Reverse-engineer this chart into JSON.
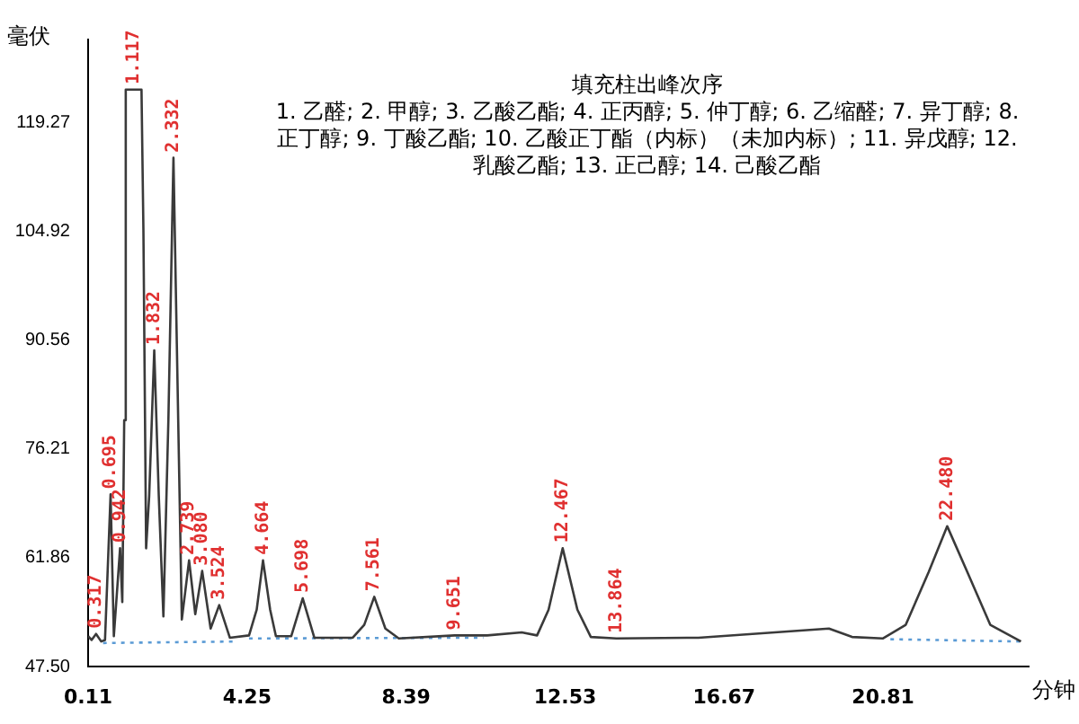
{
  "chart_data": {
    "type": "line",
    "title": "填充柱出峰次序",
    "xlabel": "分钟",
    "ylabel": "毫伏",
    "xlim": [
      0.11,
      24.6
    ],
    "xticks": [
      0.11,
      4.25,
      8.39,
      12.53,
      16.67,
      20.81
    ],
    "ylim": [
      47.5,
      130.2
    ],
    "yticks": [
      {
        "value": 47.5,
        "label": "47.50"
      },
      61.86,
      76.21,
      90.56,
      104.92,
      119.27
    ],
    "grid": false,
    "legend": false,
    "marker": "none",
    "series": [
      {
        "color": "#3a3a3a",
        "line_style": "solid",
        "x": [
          0.11,
          0.2,
          0.317,
          0.45,
          0.55,
          0.695,
          0.78,
          0.942,
          1.0,
          1.05,
          1.09,
          1.5,
          1.55,
          1.62,
          1.7,
          1.832,
          1.95,
          2.07,
          2.2,
          2.332,
          2.42,
          2.55,
          2.739,
          2.9,
          3.08,
          3.3,
          3.524,
          3.8,
          4.3,
          4.5,
          4.664,
          4.85,
          5.0,
          5.4,
          5.698,
          6.0,
          7.0,
          7.3,
          7.561,
          7.85,
          8.2,
          9.651,
          10.5,
          11.4,
          11.8,
          12.1,
          12.467,
          12.85,
          13.2,
          13.864,
          16.0,
          19.4,
          20.0,
          20.8,
          21.4,
          22.0,
          22.48,
          23.0,
          23.6,
          24.4
        ],
        "values": [
          51.5,
          51.0,
          51.8,
          50.8,
          51.0,
          70.2,
          51.5,
          63.1,
          56.0,
          80.0,
          123.6,
          123.6,
          105.0,
          63.1,
          70.0,
          89.2,
          70.0,
          54.1,
          80.0,
          114.6,
          90.0,
          53.7,
          61.5,
          54.4,
          60.1,
          52.5,
          55.6,
          51.3,
          51.6,
          55.0,
          61.5,
          55.0,
          51.5,
          51.5,
          56.5,
          51.3,
          51.3,
          53.0,
          56.7,
          52.5,
          51.2,
          51.6,
          51.6,
          52.0,
          51.6,
          55.0,
          63.1,
          55.0,
          51.4,
          51.2,
          51.3,
          52.5,
          51.4,
          51.2,
          53.0,
          60.0,
          66.0,
          60.0,
          53.0,
          50.8
        ]
      },
      {
        "color": "#5b9bd5",
        "line_style": "dotted",
        "x": [
          0.5,
          4.0,
          4.1,
          4.3,
          10.4,
          10.5,
          21.0,
          24.4
        ],
        "values": [
          50.6,
          50.8,
          null,
          51.2,
          51.3,
          null,
          51.1,
          50.8
        ]
      }
    ],
    "annotations": [
      "1. 乙醛; 2. 甲醇; 3. 乙酸乙酯; 4. 正丙醇; 5. 仲丁醇; 6. 乙缩醛; 7. 异丁醇; 8. 正丁醇; 9. 丁酸乙酯; 10. 乙酸正丁酯（内标）（未加内标）; 11. 异戊醇; 12. 乳酸乙酯; 13. 正己醇; 14. 己酸乙酯",
      {
        "text": "0.317",
        "x": 0.317,
        "y": 51.8
      },
      {
        "text": "0.695",
        "x": 0.695,
        "y": 70.2
      },
      {
        "text": "0.942",
        "x": 0.942,
        "y": 63.1
      },
      {
        "text": "1.117",
        "x": 1.3,
        "y": 123.6
      },
      {
        "text": "1.832",
        "x": 1.832,
        "y": 89.2
      },
      {
        "text": "2.332",
        "x": 2.332,
        "y": 114.6
      },
      {
        "text": "2.739",
        "x": 2.739,
        "y": 61.5
      },
      {
        "text": "3.080",
        "x": 3.08,
        "y": 60.1
      },
      {
        "text": "3.524",
        "x": 3.524,
        "y": 55.6
      },
      {
        "text": "4.664",
        "x": 4.664,
        "y": 61.5
      },
      {
        "text": "5.698",
        "x": 5.698,
        "y": 56.5
      },
      {
        "text": "7.561",
        "x": 7.561,
        "y": 56.7
      },
      {
        "text": "9.651",
        "x": 9.651,
        "y": 51.6
      },
      {
        "text": "12.467",
        "x": 12.467,
        "y": 63.1
      },
      {
        "text": "13.864",
        "x": 13.864,
        "y": 51.2
      },
      {
        "text": "22.480",
        "x": 22.48,
        "y": 66.0
      }
    ]
  }
}
